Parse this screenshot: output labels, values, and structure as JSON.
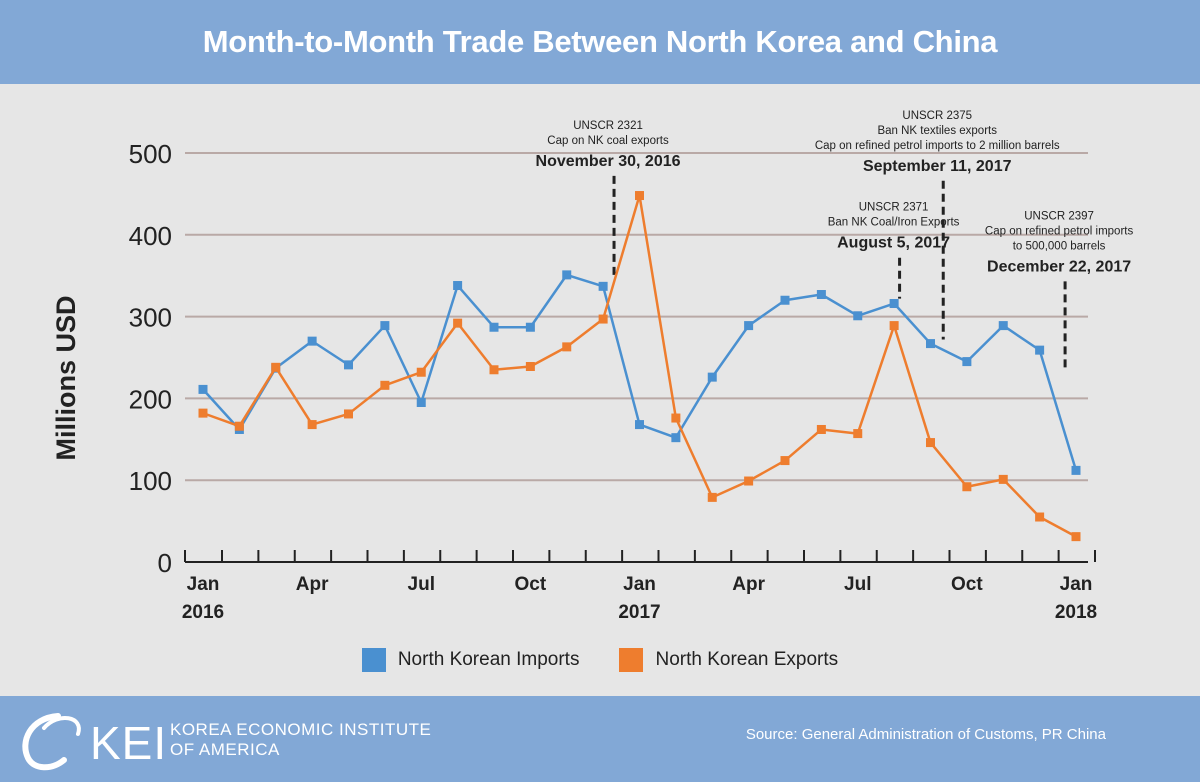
{
  "header": {
    "title": "Month-to-Month Trade Between North Korea and China"
  },
  "chart_data": {
    "type": "line",
    "title": "Month-to-Month Trade Between North Korea and China",
    "xlabel": "",
    "ylabel": "Millions USD",
    "ylim": [
      0,
      500
    ],
    "yticks": [
      "0",
      "100",
      "200",
      "300",
      "400",
      "500"
    ],
    "grid": true,
    "x_months": [
      "Jan 2016",
      "Feb 2016",
      "Mar 2016",
      "Apr 2016",
      "May 2016",
      "Jun 2016",
      "Jul 2016",
      "Aug 2016",
      "Sep 2016",
      "Oct 2016",
      "Nov 2016",
      "Dec 2016",
      "Jan 2017",
      "Feb 2017",
      "Mar 2017",
      "Apr 2017",
      "May 2017",
      "Jun 2017",
      "Jul 2017",
      "Aug 2017",
      "Sep 2017",
      "Oct 2017",
      "Nov 2017",
      "Dec 2017",
      "Jan 2018"
    ],
    "xtick_labels": [
      {
        "index": 0,
        "lines": [
          "Jan",
          "2016"
        ]
      },
      {
        "index": 3,
        "lines": [
          "Apr"
        ]
      },
      {
        "index": 6,
        "lines": [
          "Jul"
        ]
      },
      {
        "index": 9,
        "lines": [
          "Oct"
        ]
      },
      {
        "index": 12,
        "lines": [
          "Jan",
          "2017"
        ]
      },
      {
        "index": 15,
        "lines": [
          "Apr"
        ]
      },
      {
        "index": 18,
        "lines": [
          "Jul"
        ]
      },
      {
        "index": 21,
        "lines": [
          "Oct"
        ]
      },
      {
        "index": 24,
        "lines": [
          "Jan",
          "2018"
        ]
      }
    ],
    "series": [
      {
        "name": "North Korean Imports",
        "color": "#4a90d0",
        "values": [
          211,
          162,
          237,
          270,
          241,
          289,
          195,
          338,
          287,
          287,
          351,
          337,
          168,
          152,
          226,
          289,
          320,
          327,
          301,
          316,
          267,
          245,
          289,
          259,
          112
        ]
      },
      {
        "name": "North Korean Exports",
        "color": "#ee7d2e",
        "values": [
          182,
          166,
          238,
          168,
          181,
          216,
          232,
          292,
          235,
          239,
          263,
          297,
          448,
          176,
          79,
          99,
          124,
          162,
          157,
          289,
          146,
          92,
          101,
          55,
          31
        ]
      }
    ],
    "annotations": [
      {
        "x": 11.3,
        "top_value": 472,
        "bottom_value": 350,
        "lines": [
          "UNSCR 2321",
          "Cap on NK coal exports"
        ],
        "date": "November 30, 2016"
      },
      {
        "x": 19.15,
        "top_value": 372,
        "bottom_value": 322,
        "lines": [
          "UNSCR 2371",
          "Ban NK Coal/Iron Exports"
        ],
        "date": "August 5, 2017"
      },
      {
        "x": 20.35,
        "top_value": 466,
        "bottom_value": 272,
        "lines": [
          "UNSCR 2375",
          "Ban NK textiles exports",
          "Cap on refined petrol imports to 2 million barrels"
        ],
        "date": "September 11, 2017"
      },
      {
        "x": 23.7,
        "top_value": 343,
        "bottom_value": 234,
        "lines": [
          "UNSCR 2397",
          "Cap on refined petrol imports",
          "to 500,000 barrels"
        ],
        "date": "December 22, 2017"
      }
    ]
  },
  "legend": {
    "imports_label": "North Korean Imports",
    "exports_label": "North Korean Exports",
    "imports_color": "#4a90d0",
    "exports_color": "#ee7d2e"
  },
  "footer": {
    "logo_text": "KEI",
    "org_line1": "KOREA ECONOMIC INSTITUTE",
    "org_line2": "OF AMERICA",
    "source": "Source: General Administration of Customs, PR China"
  }
}
